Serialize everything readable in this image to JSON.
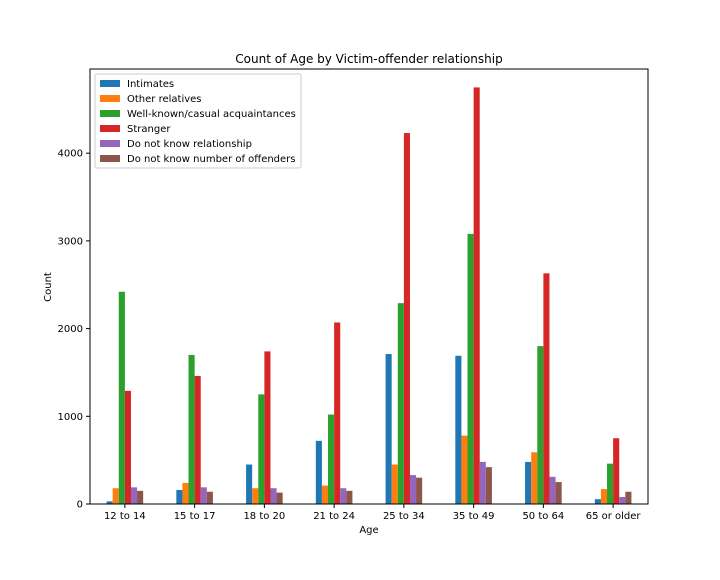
{
  "chart_data": {
    "type": "bar",
    "title": "Count of Age by Victim-offender relationship",
    "xlabel": "Age",
    "ylabel": "Count",
    "ylim": [
      0,
      4960
    ],
    "yticks": [
      0,
      1000,
      2000,
      3000,
      4000
    ],
    "grid": false,
    "legend_position": "top-left",
    "categories": [
      "12 to 14",
      "15 to 17",
      "18 to 20",
      "21 to 24",
      "25 to 34",
      "35 to 49",
      "50 to 64",
      "65 or older"
    ],
    "series": [
      {
        "name": "Intimates",
        "color": "#1f77b4",
        "values": [
          30,
          160,
          450,
          720,
          1710,
          1690,
          480,
          55
        ]
      },
      {
        "name": "Other relatives",
        "color": "#ff7f0e",
        "values": [
          180,
          240,
          180,
          210,
          450,
          780,
          590,
          170
        ]
      },
      {
        "name": "Well-known/casual acquaintances",
        "color": "#2ca02c",
        "values": [
          2420,
          1700,
          1250,
          1020,
          2290,
          3080,
          1800,
          460
        ]
      },
      {
        "name": "Stranger",
        "color": "#d62728",
        "values": [
          1290,
          1460,
          1740,
          2070,
          4230,
          4750,
          2630,
          750
        ]
      },
      {
        "name": "Do not know relationship",
        "color": "#9467bd",
        "values": [
          190,
          190,
          180,
          180,
          330,
          480,
          310,
          80
        ]
      },
      {
        "name": "Do not know number of offenders",
        "color": "#8c564b",
        "values": [
          150,
          140,
          130,
          150,
          300,
          420,
          250,
          140
        ]
      }
    ]
  }
}
